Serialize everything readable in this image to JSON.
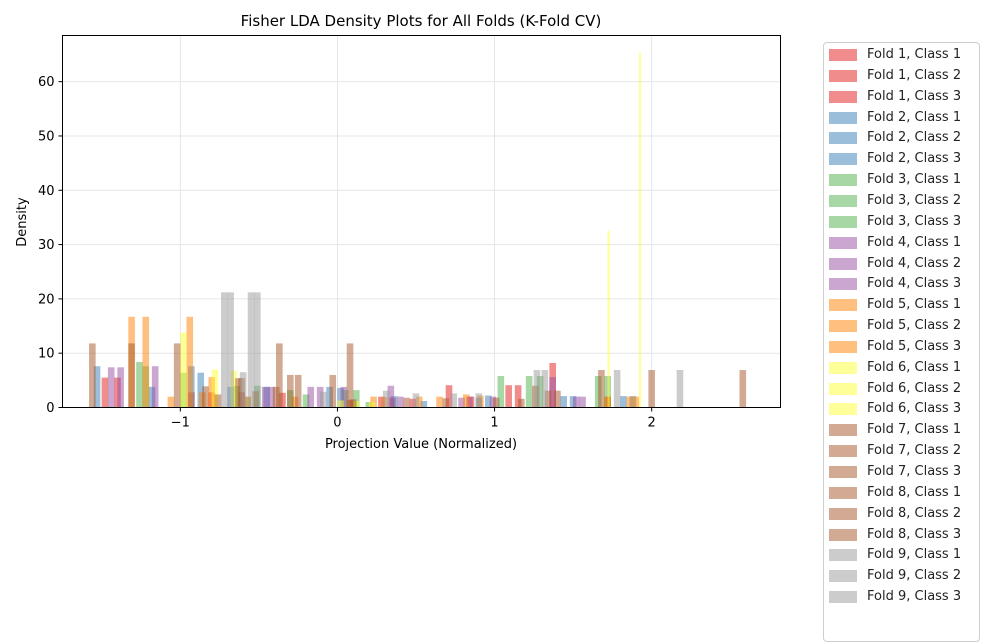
{
  "chart_data": {
    "type": "bar",
    "title": "Fisher LDA Density Plots for All Folds (K-Fold CV)",
    "xlabel": "Projection Value (Normalized)",
    "ylabel": "Density",
    "xlim": [
      -1.75,
      2.82
    ],
    "ylim": [
      0,
      68.5
    ],
    "xticks": [
      -1,
      0,
      1,
      2
    ],
    "xtick_labels": [
      "−1",
      "0",
      "1",
      "2"
    ],
    "yticks": [
      0,
      10,
      20,
      30,
      40,
      50,
      60
    ],
    "yticks_labels": [
      "0",
      "10",
      "20",
      "30",
      "40",
      "50",
      "60"
    ],
    "grid": true,
    "legend": "outside-right",
    "fold_colors": [
      "#e41a1c",
      "#377eb8",
      "#4daf4a",
      "#984ea3",
      "#ff7f00",
      "#ffff33",
      "#a65628",
      "#a65628",
      "#999999"
    ],
    "series": [
      {
        "name": "Fold 1, Class 1",
        "fold": 1,
        "bins": [
          [
            -1.48,
            5.5
          ],
          [
            -1.4,
            5.5
          ],
          [
            -0.93,
            2.8
          ],
          [
            -0.8,
            2.8
          ],
          [
            -0.61,
            2.8
          ]
        ]
      },
      {
        "name": "Fold 1, Class 2",
        "fold": 1,
        "bins": [
          [
            -0.35,
            2.7
          ],
          [
            0.08,
            1.4
          ],
          [
            0.28,
            2.0
          ],
          [
            0.35,
            1.8
          ],
          [
            0.48,
            1.6
          ]
        ]
      },
      {
        "name": "Fold 1, Class 3",
        "fold": 1,
        "bins": [
          [
            0.71,
            4.1
          ],
          [
            0.85,
            2.0
          ],
          [
            1.09,
            4.1
          ],
          [
            1.15,
            4.1
          ],
          [
            1.37,
            8.2
          ],
          [
            1.72,
            2.0
          ]
        ]
      },
      {
        "name": "Fold 2, Class 1",
        "fold": 2,
        "bins": [
          [
            -1.53,
            7.6
          ],
          [
            -1.18,
            3.8
          ],
          [
            -0.93,
            7.6
          ],
          [
            -0.87,
            6.4
          ],
          [
            -0.68,
            3.8
          ]
        ]
      },
      {
        "name": "Fold 2, Class 2",
        "fold": 2,
        "bins": [
          [
            -0.45,
            3.8
          ],
          [
            -0.05,
            3.8
          ],
          [
            0.02,
            3.6
          ],
          [
            0.36,
            2.1
          ],
          [
            0.55,
            1.2
          ]
        ]
      },
      {
        "name": "Fold 2, Class 3",
        "fold": 2,
        "bins": [
          [
            0.9,
            1.8
          ],
          [
            0.96,
            2.2
          ],
          [
            1.44,
            2.1
          ],
          [
            1.5,
            2.1
          ],
          [
            1.82,
            2.1
          ],
          [
            1.88,
            2.1
          ]
        ]
      },
      {
        "name": "Fold 3, Class 1",
        "fold": 3,
        "bins": [
          [
            -1.26,
            8.4
          ],
          [
            -1.22,
            7.6
          ],
          [
            -0.98,
            6.4
          ],
          [
            -0.64,
            4.0
          ],
          [
            -0.51,
            4.0
          ]
        ]
      },
      {
        "name": "Fold 3, Class 2",
        "fold": 3,
        "bins": [
          [
            -0.3,
            3.2
          ],
          [
            -0.2,
            2.4
          ],
          [
            0.05,
            3.2
          ],
          [
            0.12,
            3.2
          ],
          [
            0.2,
            1.0
          ]
        ]
      },
      {
        "name": "Fold 3, Class 3",
        "fold": 3,
        "bins": [
          [
            1.04,
            5.8
          ],
          [
            1.22,
            5.8
          ],
          [
            1.29,
            5.8
          ],
          [
            1.66,
            5.8
          ],
          [
            1.72,
            5.8
          ]
        ]
      },
      {
        "name": "Fold 4, Class 1",
        "fold": 4,
        "bins": [
          [
            -1.44,
            7.4
          ],
          [
            -1.38,
            7.4
          ],
          [
            -1.16,
            7.6
          ],
          [
            -0.46,
            3.8
          ],
          [
            -0.42,
            3.8
          ]
        ]
      },
      {
        "name": "Fold 4, Class 2",
        "fold": 4,
        "bins": [
          [
            -0.17,
            3.8
          ],
          [
            -0.11,
            3.8
          ],
          [
            0.04,
            3.8
          ],
          [
            0.34,
            4.0
          ],
          [
            0.4,
            2.0
          ]
        ]
      },
      {
        "name": "Fold 4, Class 3",
        "fold": 4,
        "bins": [
          [
            0.79,
            1.8
          ],
          [
            0.84,
            2.0
          ],
          [
            0.99,
            2.0
          ],
          [
            1.37,
            5.6
          ],
          [
            1.52,
            2.0
          ],
          [
            1.56,
            2.0
          ]
        ]
      },
      {
        "name": "Fold 5, Class 1",
        "fold": 5,
        "bins": [
          [
            -1.31,
            16.7
          ],
          [
            -1.22,
            16.7
          ],
          [
            -0.94,
            16.7
          ],
          [
            -1.06,
            2.0
          ],
          [
            -0.86,
            2.8
          ]
        ]
      },
      {
        "name": "Fold 5, Class 2",
        "fold": 5,
        "bins": [
          [
            -0.8,
            5.6
          ],
          [
            -0.27,
            2.0
          ],
          [
            0.23,
            2.0
          ],
          [
            0.3,
            1.9
          ],
          [
            0.52,
            2.0
          ]
        ]
      },
      {
        "name": "Fold 5, Class 3",
        "fold": 5,
        "bins": [
          [
            0.65,
            2.0
          ],
          [
            0.82,
            2.4
          ],
          [
            0.91,
            2.2
          ],
          [
            1.72,
            2.0
          ],
          [
            1.86,
            2.0
          ],
          [
            1.9,
            2.0
          ]
        ]
      },
      {
        "name": "Fold 6, Class 1",
        "fold": 6,
        "bins": [
          [
            -0.98,
            13.8
          ],
          [
            -0.78,
            7.0
          ],
          [
            -0.66,
            6.8
          ],
          [
            -0.57,
            1.9
          ]
        ]
      },
      {
        "name": "Fold 6, Class 2",
        "fold": 6,
        "bins": [
          [
            0.02,
            1.3
          ],
          [
            0.12,
            1.2
          ],
          [
            0.22,
            1.0
          ]
        ]
      },
      {
        "name": "Fold 6, Class 3",
        "fold": 6,
        "bins": [
          [
            1.74,
            32.5
          ],
          [
            1.94,
            65.3
          ]
        ]
      },
      {
        "name": "Fold 7, Class 1",
        "fold": 7,
        "bins": [
          [
            -1.56,
            11.8
          ],
          [
            -1.31,
            11.8
          ],
          [
            -1.02,
            11.8
          ],
          [
            -0.63,
            5.4
          ],
          [
            -0.61,
            5.4
          ]
        ]
      },
      {
        "name": "Fold 7, Class 2",
        "fold": 7,
        "bins": [
          [
            -0.37,
            11.8
          ],
          [
            -0.3,
            6.0
          ],
          [
            -0.25,
            6.0
          ],
          [
            -0.03,
            6.0
          ],
          [
            0.08,
            11.8
          ]
        ]
      },
      {
        "name": "Fold 7, Class 3",
        "fold": 7,
        "bins": [
          [
            1.26,
            4.0
          ],
          [
            1.68,
            6.9
          ],
          [
            2.0,
            6.9
          ],
          [
            2.58,
            6.9
          ]
        ]
      },
      {
        "name": "Fold 8, Class 1",
        "fold": 8,
        "bins": [
          [
            -0.84,
            3.9
          ],
          [
            -0.76,
            2.4
          ],
          [
            -0.57,
            2.0
          ],
          [
            -0.52,
            3.0
          ]
        ]
      },
      {
        "name": "Fold 8, Class 2",
        "fold": 8,
        "bins": [
          [
            -0.39,
            3.8
          ],
          [
            0.1,
            1.5
          ],
          [
            0.44,
            1.8
          ],
          [
            0.69,
            1.7
          ]
        ]
      },
      {
        "name": "Fold 8, Class 3",
        "fold": 8,
        "bins": [
          [
            1.01,
            1.8
          ],
          [
            1.17,
            1.6
          ],
          [
            1.34,
            3.1
          ],
          [
            1.4,
            3.1
          ]
        ]
      },
      {
        "name": "Fold 9, Class 1",
        "fold": 9,
        "bins": [
          [
            -0.72,
            21.2
          ],
          [
            -0.68,
            21.2
          ],
          [
            -0.55,
            21.2
          ],
          [
            -0.51,
            21.2
          ],
          [
            -0.6,
            6.5
          ]
        ]
      },
      {
        "name": "Fold 9, Class 2",
        "fold": 9,
        "bins": [
          [
            -0.09,
            2.9
          ],
          [
            0.31,
            3.1
          ],
          [
            0.5,
            2.6
          ],
          [
            0.74,
            2.6
          ],
          [
            0.9,
            2.6
          ]
        ]
      },
      {
        "name": "Fold 9, Class 3",
        "fold": 9,
        "bins": [
          [
            1.27,
            6.9
          ],
          [
            1.32,
            6.9
          ],
          [
            1.78,
            6.9
          ],
          [
            2.18,
            6.9
          ]
        ]
      }
    ]
  }
}
